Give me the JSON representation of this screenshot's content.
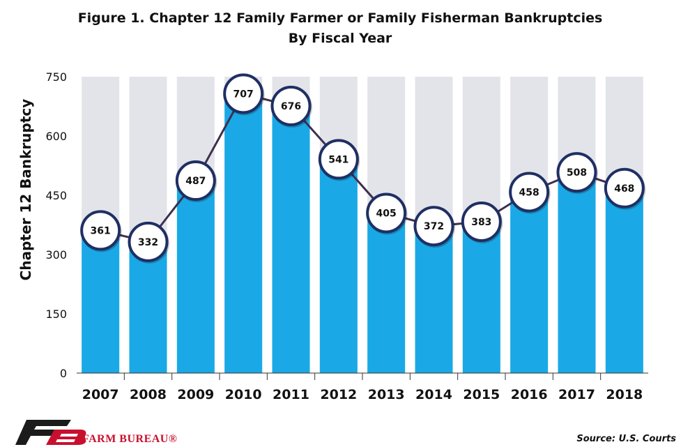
{
  "title_line1": "Figure 1. Chapter 12 Family Farmer or Family Fisherman Bankruptcies",
  "title_line2": "By Fiscal Year",
  "source": "Source: U.S. Courts",
  "brand_name": "FARM BUREAU®",
  "colors": {
    "bar": "#1aa9e6",
    "bar_background": "#e3e4e9",
    "line": "#3f2f4f",
    "marker_fill": "#ffffff",
    "marker_stroke": "#1f2f64",
    "brand_red": "#c8102e",
    "brand_dark": "#1b1b1b"
  },
  "chart_data": {
    "type": "bar",
    "categories": [
      "2007",
      "2008",
      "2009",
      "2010",
      "2011",
      "2012",
      "2013",
      "2014",
      "2015",
      "2016",
      "2017",
      "2018"
    ],
    "values": [
      361,
      332,
      487,
      707,
      676,
      541,
      405,
      372,
      383,
      458,
      508,
      468
    ],
    "overlay": "line",
    "title": "Figure 1. Chapter 12 Family Farmer or Family Fisherman Bankruptcies By Fiscal Year",
    "xlabel": "",
    "ylabel": "Chapter 12 Bankruptcy",
    "ylim": [
      0,
      750
    ],
    "yticks": [
      0,
      150,
      300,
      450,
      600,
      750
    ],
    "grid": false,
    "legend": "none",
    "data_labels": true
  }
}
